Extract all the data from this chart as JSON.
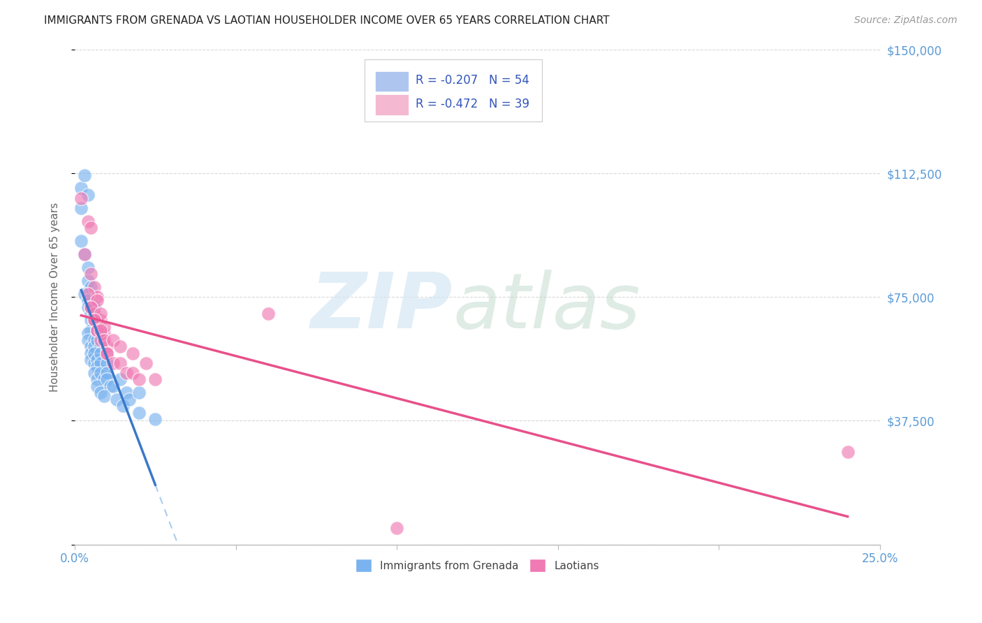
{
  "title": "IMMIGRANTS FROM GRENADA VS LAOTIAN HOUSEHOLDER INCOME OVER 65 YEARS CORRELATION CHART",
  "source": "Source: ZipAtlas.com",
  "ylabel": "Householder Income Over 65 years",
  "xlim": [
    0.0,
    0.25
  ],
  "ylim": [
    0,
    150000
  ],
  "xtick_positions": [
    0.0,
    0.05,
    0.1,
    0.15,
    0.2,
    0.25
  ],
  "xticklabels": [
    "0.0%",
    "",
    "",
    "",
    "",
    "25.0%"
  ],
  "ytick_positions": [
    0,
    37500,
    75000,
    112500,
    150000
  ],
  "ytick_labels": [
    "",
    "$37,500",
    "$75,000",
    "$112,500",
    "$150,000"
  ],
  "background_color": "#ffffff",
  "grid_color": "#d8d8d8",
  "title_color": "#222222",
  "axis_color": "#5b9bd5",
  "legend": {
    "R1": "-0.207",
    "N1": "54",
    "R2": "-0.472",
    "N2": "39",
    "color1": "#aec6ef",
    "color2": "#f4b8d0",
    "text_color": "#3355bb"
  },
  "grenada_x": [
    0.002,
    0.002,
    0.003,
    0.004,
    0.002,
    0.003,
    0.004,
    0.004,
    0.005,
    0.003,
    0.004,
    0.004,
    0.005,
    0.005,
    0.005,
    0.006,
    0.006,
    0.004,
    0.004,
    0.005,
    0.005,
    0.006,
    0.006,
    0.007,
    0.007,
    0.008,
    0.005,
    0.006,
    0.006,
    0.007,
    0.007,
    0.008,
    0.008,
    0.009,
    0.006,
    0.007,
    0.008,
    0.009,
    0.01,
    0.01,
    0.007,
    0.008,
    0.01,
    0.011,
    0.009,
    0.012,
    0.014,
    0.013,
    0.016,
    0.015,
    0.017,
    0.02,
    0.02,
    0.025
  ],
  "grenada_y": [
    108000,
    102000,
    112000,
    106000,
    92000,
    88000,
    84000,
    80000,
    78000,
    76000,
    74000,
    72000,
    70000,
    68000,
    65000,
    72000,
    68000,
    64000,
    62000,
    60000,
    58000,
    62000,
    60000,
    65000,
    62000,
    60000,
    56000,
    55000,
    58000,
    56000,
    54000,
    58000,
    55000,
    52000,
    52000,
    50000,
    52000,
    50000,
    55000,
    52000,
    48000,
    46000,
    50000,
    48000,
    45000,
    48000,
    50000,
    44000,
    46000,
    42000,
    44000,
    46000,
    40000,
    38000
  ],
  "laotian_x": [
    0.002,
    0.004,
    0.005,
    0.003,
    0.005,
    0.006,
    0.007,
    0.004,
    0.005,
    0.006,
    0.007,
    0.008,
    0.005,
    0.006,
    0.007,
    0.008,
    0.009,
    0.006,
    0.007,
    0.008,
    0.009,
    0.01,
    0.008,
    0.009,
    0.01,
    0.012,
    0.01,
    0.012,
    0.014,
    0.014,
    0.016,
    0.018,
    0.018,
    0.02,
    0.022,
    0.025,
    0.06,
    0.24,
    0.1
  ],
  "laotian_y": [
    105000,
    98000,
    96000,
    88000,
    82000,
    78000,
    75000,
    76000,
    72000,
    70000,
    74000,
    68000,
    72000,
    68000,
    65000,
    70000,
    64000,
    68000,
    65000,
    62000,
    66000,
    60000,
    65000,
    62000,
    58000,
    62000,
    58000,
    55000,
    60000,
    55000,
    52000,
    58000,
    52000,
    50000,
    55000,
    50000,
    70000,
    28000,
    5000
  ],
  "grenada_color": "#7ab3f0",
  "laotian_color": "#f07ab3",
  "grenada_line_color": "#3a78c9",
  "laotian_line_color": "#e8508a",
  "dashed_line_color": "#aaccee"
}
